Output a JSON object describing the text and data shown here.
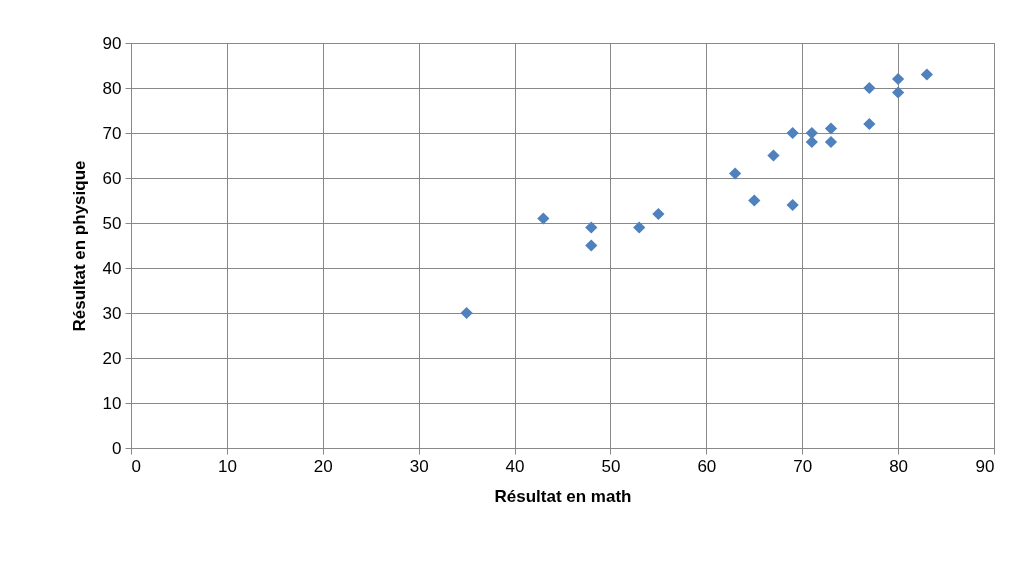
{
  "chart_data": {
    "type": "scatter",
    "xlabel": "Résultat en math",
    "ylabel": "Résultat en physique",
    "x": [
      35,
      43,
      48,
      48,
      53,
      55,
      63,
      65,
      67,
      69,
      69,
      71,
      71,
      73,
      73,
      77,
      77,
      80,
      80,
      83
    ],
    "series": [
      {
        "color": "#4f81bd",
        "values": [
          30,
          51,
          49,
          45,
          49,
          52,
          61,
          55,
          65,
          70,
          54,
          70,
          68,
          71,
          68,
          80,
          72,
          82,
          79,
          83
        ]
      }
    ],
    "xlim": [
      0,
      90
    ],
    "xticks": [
      0,
      10,
      20,
      30,
      40,
      50,
      60,
      70,
      80,
      90
    ],
    "ylim": [
      0,
      90
    ],
    "yticks": [
      0,
      10,
      20,
      30,
      40,
      50,
      60,
      70,
      80,
      90
    ],
    "grid": true,
    "marker": "diamond"
  }
}
